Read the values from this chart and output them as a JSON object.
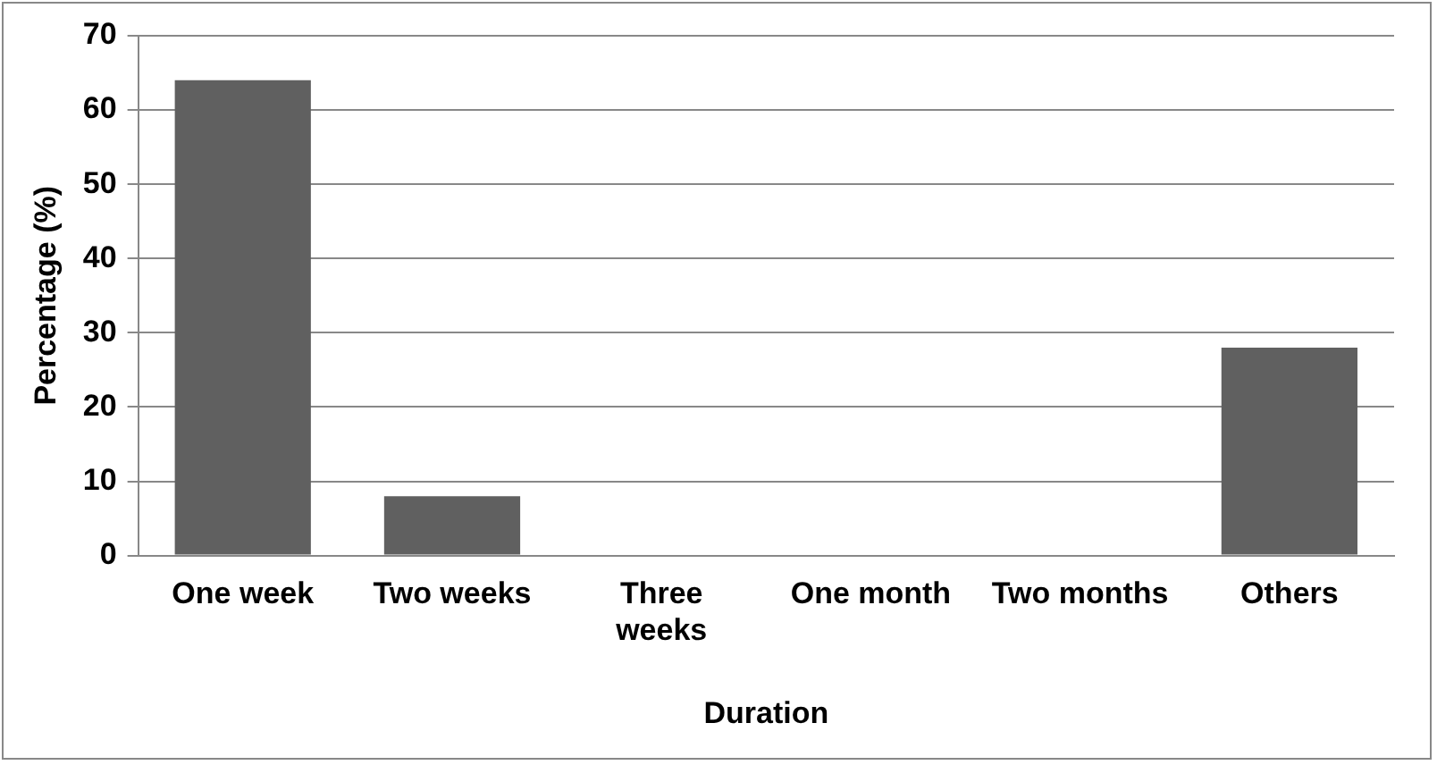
{
  "chart_data": {
    "type": "bar",
    "xlabel": "Duration",
    "ylabel": "Percentage (%)",
    "categories": [
      "One week",
      "Two weeks",
      "Three weeks",
      "One month",
      "Two months",
      "Others"
    ],
    "values": [
      64,
      8,
      0,
      0,
      0,
      28
    ],
    "color": "#606060",
    "ylim": [
      0,
      70
    ],
    "yticks": [
      0,
      10,
      20,
      30,
      40,
      50,
      60,
      70
    ],
    "grid": "y",
    "legend": false
  }
}
